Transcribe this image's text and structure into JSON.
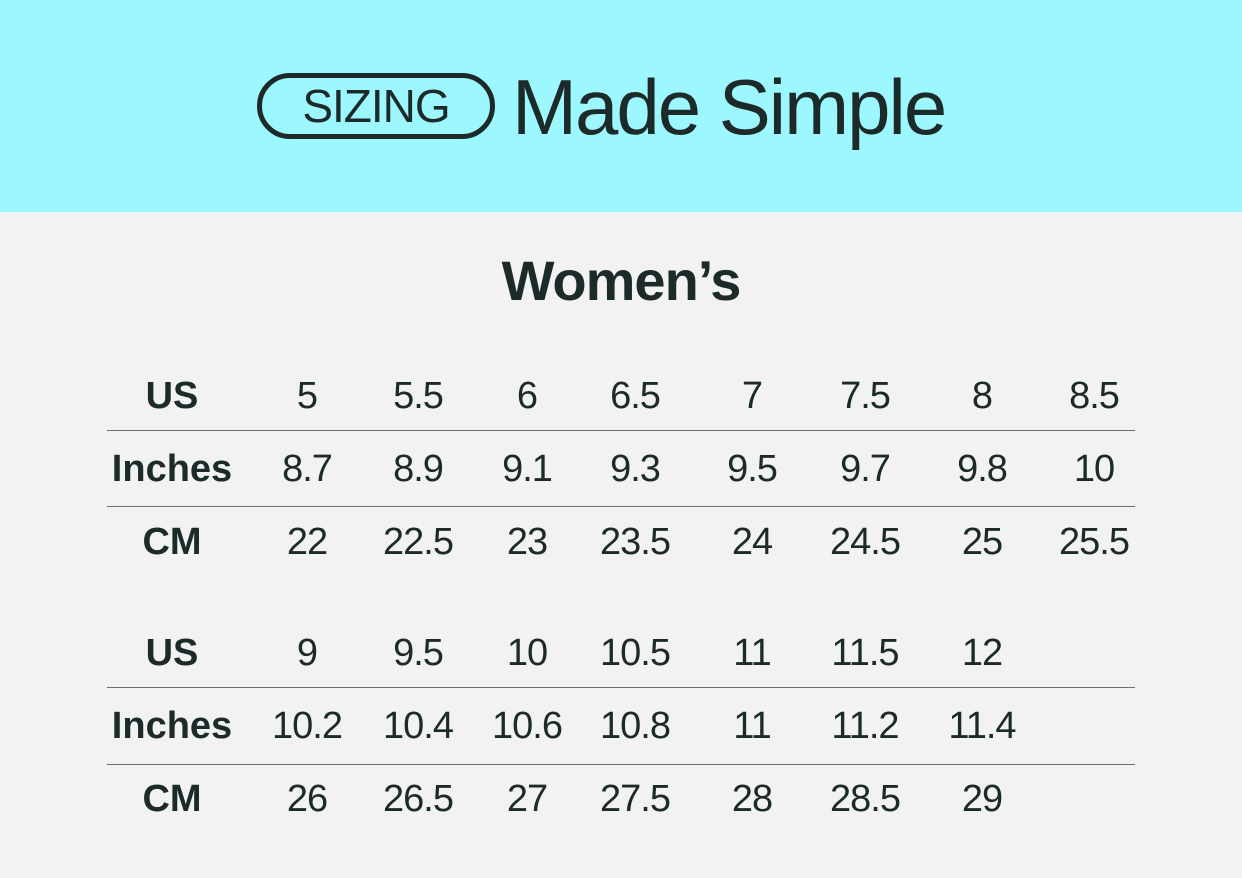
{
  "header": {
    "badge": "SIZING",
    "headline": "Made Simple",
    "background": "#9cf7fe"
  },
  "title": "Women’s",
  "tables": [
    {
      "rows": [
        {
          "label": "US",
          "values": [
            "5",
            "5.5",
            "6",
            "6.5",
            "7",
            "7.5",
            "8",
            "8.5"
          ]
        },
        {
          "label": "Inches",
          "values": [
            "8.7",
            "8.9",
            "9.1",
            "9.3",
            "9.5",
            "9.7",
            "9.8",
            "10"
          ]
        },
        {
          "label": "CM",
          "values": [
            "22",
            "22.5",
            "23",
            "23.5",
            "24",
            "24.5",
            "25",
            "25.5"
          ]
        }
      ]
    },
    {
      "rows": [
        {
          "label": "US",
          "values": [
            "9",
            "9.5",
            "10",
            "10.5",
            "11",
            "11.5",
            "12"
          ]
        },
        {
          "label": "Inches",
          "values": [
            "10.2",
            "10.4",
            "10.6",
            "10.8",
            "11",
            "11.2",
            "11.4"
          ]
        },
        {
          "label": "CM",
          "values": [
            "26",
            "26.5",
            "27",
            "27.5",
            "28",
            "28.5",
            "29"
          ]
        }
      ]
    }
  ]
}
